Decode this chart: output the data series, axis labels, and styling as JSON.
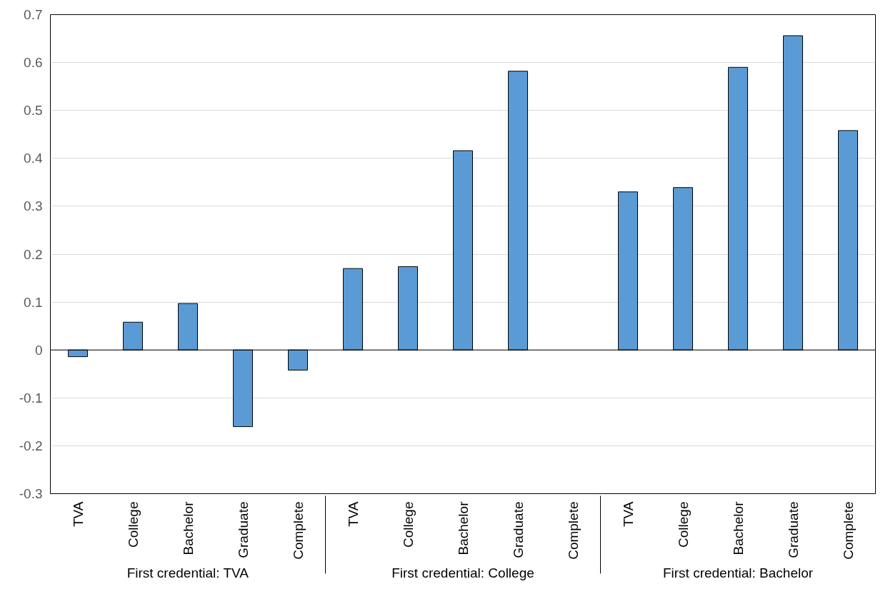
{
  "chart_data": {
    "type": "bar",
    "categories": [
      "TVA",
      "College",
      "Bachelor",
      "Graduate",
      "Complete",
      "TVA",
      "College",
      "Bachelor",
      "Graduate",
      "Complete",
      "TVA",
      "College",
      "Bachelor",
      "Graduate",
      "Complete"
    ],
    "values": [
      -0.014,
      0.058,
      0.097,
      -0.16,
      -0.042,
      0.17,
      0.174,
      0.416,
      0.582,
      null,
      0.33,
      0.339,
      0.59,
      0.656,
      0.458
    ],
    "color": "#5b9bd5",
    "annotations": [
      "First credential: TVA",
      "First credential: College",
      "First credential: Bachelor"
    ],
    "ylim": [
      -0.3,
      0.7
    ],
    "yticks": [
      -0.3,
      -0.2,
      -0.1,
      0,
      0.1,
      0.2,
      0.3,
      0.4,
      0.5,
      0.6,
      0.7
    ],
    "grid": "y"
  }
}
